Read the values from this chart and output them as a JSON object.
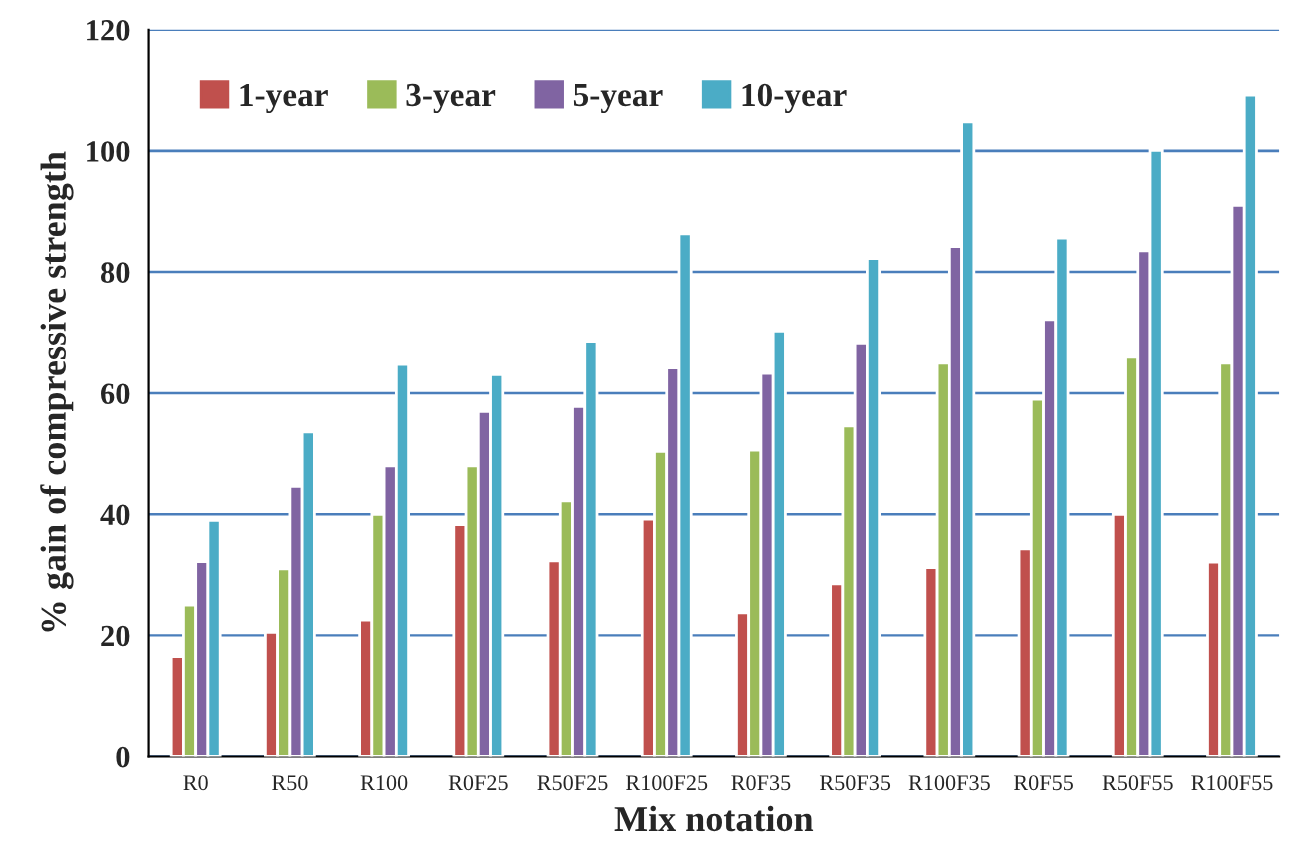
{
  "chart_data": {
    "type": "bar",
    "xlabel": "Mix notation",
    "ylabel": "% gain of compressive strength",
    "categories": [
      "R0",
      "R50",
      "R100",
      "R0F25",
      "R50F25",
      "R100F25",
      "R0F35",
      "R50F35",
      "R100F35",
      "R0F55",
      "R50F55",
      "R100F55"
    ],
    "series": [
      {
        "name": "1-year",
        "color": "#c0504d",
        "values": [
          16.5,
          20.5,
          22.5,
          38.3,
          32.3,
          39.2,
          23.7,
          28.5,
          31.2,
          34.3,
          40,
          32.1
        ]
      },
      {
        "name": "3-year",
        "color": "#9bbb59",
        "values": [
          25,
          31,
          40,
          48,
          42.2,
          50.4,
          50.6,
          54.6,
          65,
          59,
          66,
          65
        ]
      },
      {
        "name": "5-year",
        "color": "#8064a2",
        "values": [
          32.2,
          44.6,
          48,
          57,
          57.8,
          64.2,
          63.3,
          68.2,
          84.2,
          72.1,
          83.5,
          91
        ]
      },
      {
        "name": "10-year",
        "color": "#4bacc6",
        "values": [
          39,
          53.6,
          64.8,
          63.1,
          68.5,
          86.3,
          70.2,
          82.2,
          104.8,
          85.6,
          100.1,
          109.2
        ]
      }
    ],
    "ylim": [
      0,
      120
    ],
    "yticks": [
      0,
      20,
      40,
      60,
      80,
      100,
      120
    ],
    "grid": "y",
    "legend": "top left"
  }
}
